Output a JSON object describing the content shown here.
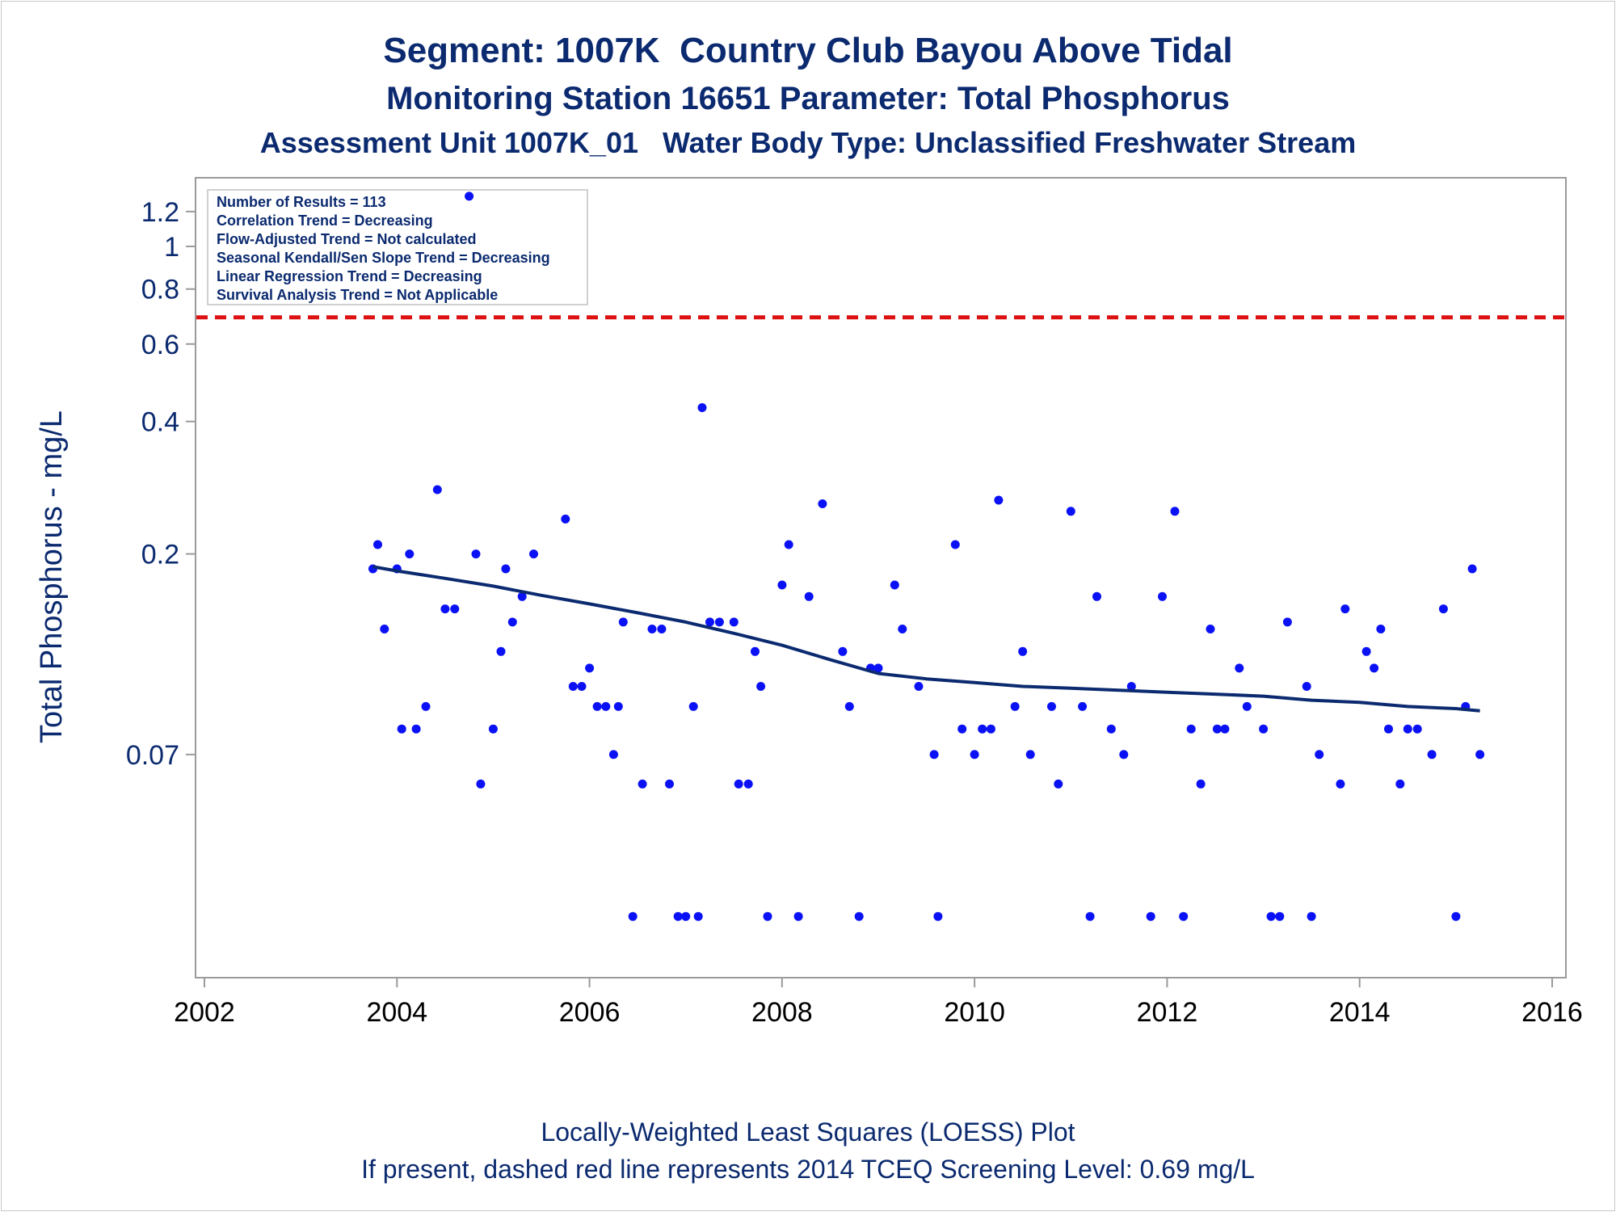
{
  "titles": {
    "line1": "Segment: 1007K  Country Club Bayou Above Tidal",
    "line2": "Monitoring Station 16651 Parameter: Total Phosphorus",
    "line3": "Assessment Unit 1007K_01   Water Body Type: Unclassified Freshwater Stream"
  },
  "footer": {
    "line1": "Locally-Weighted Least Squares (LOESS) Plot",
    "line2": "If present, dashed red line represents 2014 TCEQ Screening Level: 0.69 mg/L"
  },
  "stats": [
    "Number of Results = 113",
    "Correlation Trend = Decreasing",
    "Flow-Adjusted Trend = Not calculated",
    "Seasonal Kendall/Sen Slope Trend = Decreasing",
    "Linear Regression Trend = Decreasing",
    "Survival Analysis Trend = Not Applicable"
  ],
  "colors": {
    "text": "#0b2a6f",
    "points": "#0a12f5",
    "loess": "#0b2a6f",
    "screening": "#dd1111",
    "frame": "#9a9a9a"
  },
  "chart_data": {
    "type": "scatter",
    "ylabel": "Total Phosphorus - mg/L",
    "xlabel": "",
    "y_scale": "log",
    "xlim": [
      2002,
      2016
    ],
    "ylim": [
      0.023,
      1.35
    ],
    "x_ticks": [
      2002,
      2004,
      2006,
      2008,
      2010,
      2012,
      2014,
      2016
    ],
    "y_ticks": [
      {
        "value": 0.07,
        "label": "0.07"
      },
      {
        "value": 0.2,
        "label": "0.2"
      },
      {
        "value": 0.4,
        "label": "0.4"
      },
      {
        "value": 0.6,
        "label": "0.6"
      },
      {
        "value": 0.8,
        "label": "0.8"
      },
      {
        "value": 1,
        "label": "1"
      },
      {
        "value": 1.2,
        "label": "1.2"
      }
    ],
    "grid": false,
    "screening_level": 0.69,
    "series": [
      {
        "kind": "points",
        "points": [
          [
            2003.75,
            0.185
          ],
          [
            2003.8,
            0.21
          ],
          [
            2003.87,
            0.135
          ],
          [
            2004.0,
            0.185
          ],
          [
            2004.05,
            0.08
          ],
          [
            2004.13,
            0.2
          ],
          [
            2004.2,
            0.08
          ],
          [
            2004.3,
            0.09
          ],
          [
            2004.42,
            0.28
          ],
          [
            2004.5,
            0.15
          ],
          [
            2004.6,
            0.15
          ],
          [
            2004.75,
            1.3
          ],
          [
            2004.82,
            0.2
          ],
          [
            2004.87,
            0.06
          ],
          [
            2005.0,
            0.08
          ],
          [
            2005.08,
            0.12
          ],
          [
            2005.13,
            0.185
          ],
          [
            2005.2,
            0.14
          ],
          [
            2005.3,
            0.16
          ],
          [
            2005.42,
            0.2
          ],
          [
            2005.75,
            0.24
          ],
          [
            2005.83,
            0.1
          ],
          [
            2005.92,
            0.1
          ],
          [
            2006.0,
            0.11
          ],
          [
            2006.08,
            0.09
          ],
          [
            2006.17,
            0.09
          ],
          [
            2006.25,
            0.07
          ],
          [
            2006.3,
            0.09
          ],
          [
            2006.35,
            0.14
          ],
          [
            2006.45,
            0.03
          ],
          [
            2006.55,
            0.06
          ],
          [
            2006.65,
            0.135
          ],
          [
            2006.75,
            0.135
          ],
          [
            2006.83,
            0.06
          ],
          [
            2006.92,
            0.03
          ],
          [
            2007.0,
            0.03
          ],
          [
            2007.08,
            0.09
          ],
          [
            2007.13,
            0.03
          ],
          [
            2007.17,
            0.43
          ],
          [
            2007.25,
            0.14
          ],
          [
            2007.35,
            0.14
          ],
          [
            2007.5,
            0.14
          ],
          [
            2007.55,
            0.06
          ],
          [
            2007.65,
            0.06
          ],
          [
            2007.72,
            0.12
          ],
          [
            2007.78,
            0.1
          ],
          [
            2007.85,
            0.03
          ],
          [
            2008.0,
            0.17
          ],
          [
            2008.07,
            0.21
          ],
          [
            2008.17,
            0.03
          ],
          [
            2008.28,
            0.16
          ],
          [
            2008.42,
            0.26
          ],
          [
            2008.63,
            0.12
          ],
          [
            2008.7,
            0.09
          ],
          [
            2008.8,
            0.03
          ],
          [
            2008.92,
            0.11
          ],
          [
            2009.0,
            0.11
          ],
          [
            2009.17,
            0.17
          ],
          [
            2009.25,
            0.135
          ],
          [
            2009.42,
            0.1
          ],
          [
            2009.58,
            0.07
          ],
          [
            2009.62,
            0.03
          ],
          [
            2009.8,
            0.21
          ],
          [
            2009.87,
            0.08
          ],
          [
            2010.0,
            0.07
          ],
          [
            2010.08,
            0.08
          ],
          [
            2010.17,
            0.08
          ],
          [
            2010.25,
            0.265
          ],
          [
            2010.42,
            0.09
          ],
          [
            2010.5,
            0.12
          ],
          [
            2010.58,
            0.07
          ],
          [
            2010.8,
            0.09
          ],
          [
            2010.87,
            0.06
          ],
          [
            2011.0,
            0.25
          ],
          [
            2011.12,
            0.09
          ],
          [
            2011.2,
            0.03
          ],
          [
            2011.27,
            0.16
          ],
          [
            2011.42,
            0.08
          ],
          [
            2011.55,
            0.07
          ],
          [
            2011.63,
            0.1
          ],
          [
            2011.83,
            0.03
          ],
          [
            2011.95,
            0.16
          ],
          [
            2012.08,
            0.25
          ],
          [
            2012.17,
            0.03
          ],
          [
            2012.25,
            0.08
          ],
          [
            2012.35,
            0.06
          ],
          [
            2012.45,
            0.135
          ],
          [
            2012.52,
            0.08
          ],
          [
            2012.6,
            0.08
          ],
          [
            2012.75,
            0.11
          ],
          [
            2012.83,
            0.09
          ],
          [
            2013.0,
            0.08
          ],
          [
            2013.08,
            0.03
          ],
          [
            2013.17,
            0.03
          ],
          [
            2013.25,
            0.14
          ],
          [
            2013.45,
            0.1
          ],
          [
            2013.5,
            0.03
          ],
          [
            2013.58,
            0.07
          ],
          [
            2013.8,
            0.06
          ],
          [
            2013.85,
            0.15
          ],
          [
            2014.07,
            0.12
          ],
          [
            2014.15,
            0.11
          ],
          [
            2014.22,
            0.135
          ],
          [
            2014.3,
            0.08
          ],
          [
            2014.42,
            0.06
          ],
          [
            2014.5,
            0.08
          ],
          [
            2014.6,
            0.08
          ],
          [
            2014.75,
            0.07
          ],
          [
            2014.87,
            0.15
          ],
          [
            2015.0,
            0.03
          ],
          [
            2015.1,
            0.09
          ],
          [
            2015.17,
            0.185
          ],
          [
            2015.25,
            0.07
          ]
        ]
      },
      {
        "kind": "loess",
        "x": [
          2003.75,
          2004.0,
          2004.5,
          2005.0,
          2005.5,
          2006.0,
          2006.5,
          2007.0,
          2007.5,
          2008.0,
          2008.5,
          2009.0,
          2009.5,
          2010.0,
          2010.5,
          2011.0,
          2011.5,
          2012.0,
          2012.5,
          2013.0,
          2013.5,
          2014.0,
          2014.5,
          2015.0,
          2015.25
        ],
        "y": [
          0.187,
          0.183,
          0.176,
          0.169,
          0.161,
          0.154,
          0.147,
          0.14,
          0.132,
          0.124,
          0.115,
          0.107,
          0.104,
          0.102,
          0.1,
          0.099,
          0.098,
          0.097,
          0.096,
          0.095,
          0.093,
          0.092,
          0.09,
          0.089,
          0.088
        ]
      }
    ]
  }
}
